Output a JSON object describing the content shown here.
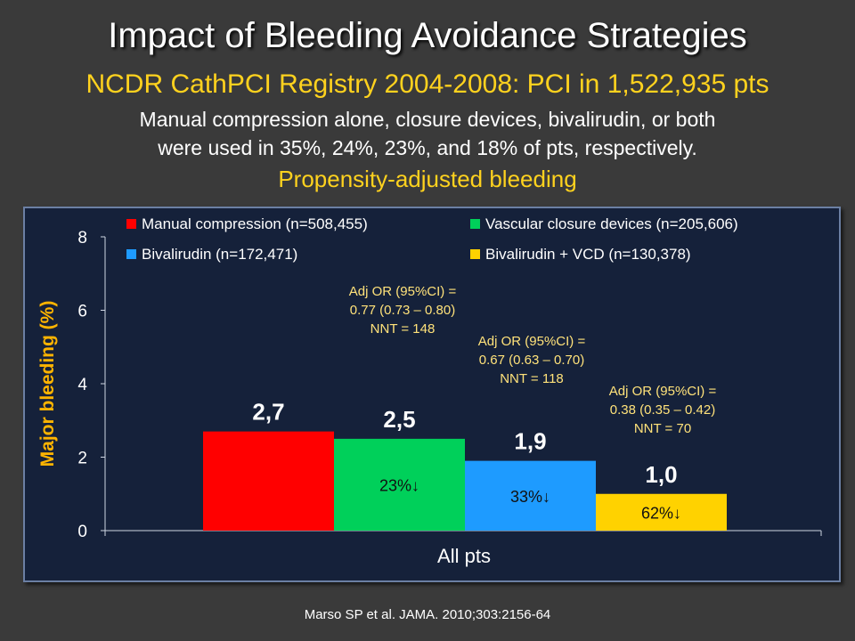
{
  "slide": {
    "title": "Impact of Bleeding Avoidance Strategies",
    "subtitle": "NCDR CathPCI Registry 2004-2008: PCI in 1,522,935 pts",
    "description_lines": [
      "Manual compression alone, closure devices, bivalirudin, or both",
      "were used in 35%, 24%, 23%, and 18% of pts, respectively."
    ],
    "section_label": "Propensity-adjusted bleeding",
    "citation": "Marso SP et al. JAMA. 2010;303:2156-64"
  },
  "chart_data": {
    "type": "bar",
    "ylabel": "Major bleeding (%)",
    "xlabel": "",
    "categories": [
      "All pts"
    ],
    "ylim": [
      0,
      8
    ],
    "yticks": [
      0,
      2,
      4,
      6,
      8
    ],
    "grid": false,
    "legend_position": "top",
    "series": [
      {
        "name": "Manual compression (n=508,455)",
        "values": [
          2.7
        ],
        "value_label": "2,7",
        "color": "#ff0000",
        "reduction": "",
        "annotation": []
      },
      {
        "name": "Vascular closure devices (n=205,606)",
        "values": [
          2.5
        ],
        "value_label": "2,5",
        "color": "#00d05a",
        "reduction": "23%↓",
        "annotation": [
          "Adj OR (95%CI) =",
          "0.77 (0.73 – 0.80)",
          "NNT = 148"
        ]
      },
      {
        "name": "Bivalirudin (n=172,471)",
        "values": [
          1.9
        ],
        "value_label": "1,9",
        "color": "#1e9bff",
        "reduction": "33%↓",
        "annotation": [
          "Adj OR (95%CI) =",
          "0.67 (0.63 – 0.70)",
          "NNT = 118"
        ]
      },
      {
        "name": "Bivalirudin + VCD (n=130,378)",
        "values": [
          1.0
        ],
        "value_label": "1,0",
        "color": "#ffd200",
        "reduction": "62%↓",
        "annotation": [
          "Adj OR (95%CI) =",
          "0.38 (0.35 – 0.42)",
          "NNT = 70"
        ]
      }
    ],
    "text_color": "#ffffff",
    "annotation_color": "#ffe27a",
    "ylabel_color": "#ffb400"
  }
}
